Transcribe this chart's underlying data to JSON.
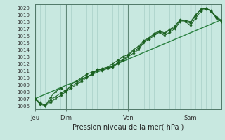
{
  "bg_color": "#c8e8e0",
  "grid_color": "#a0c8c0",
  "line_color": "#1a6020",
  "trend_color": "#2a8040",
  "xlabel_text": "Pression niveau de la mer( hPa )",
  "ylim": [
    1005.5,
    1020.5
  ],
  "yticks": [
    1006,
    1007,
    1008,
    1009,
    1010,
    1011,
    1012,
    1013,
    1014,
    1015,
    1016,
    1017,
    1018,
    1019,
    1020
  ],
  "day_labels": [
    "Jeu",
    "Dim",
    "Ven",
    "Sam"
  ],
  "day_positions": [
    0,
    0.167,
    0.5,
    0.833
  ],
  "xlim": [
    0,
    1.0
  ],
  "line1_x": [
    0.0,
    0.028,
    0.056,
    0.083,
    0.111,
    0.139,
    0.167,
    0.194,
    0.222,
    0.25,
    0.278,
    0.306,
    0.333,
    0.361,
    0.389,
    0.417,
    0.444,
    0.472,
    0.5,
    0.528,
    0.556,
    0.583,
    0.611,
    0.639,
    0.667,
    0.694,
    0.722,
    0.75,
    0.778,
    0.806,
    0.833,
    0.861,
    0.889,
    0.917,
    0.944,
    0.972,
    1.0
  ],
  "line1_y": [
    1007.0,
    1006.5,
    1006.0,
    1006.5,
    1007.0,
    1007.5,
    1008.0,
    1008.5,
    1009.0,
    1009.5,
    1010.0,
    1010.5,
    1011.0,
    1011.0,
    1011.3,
    1011.5,
    1012.0,
    1012.5,
    1013.0,
    1013.5,
    1014.0,
    1015.0,
    1015.5,
    1016.0,
    1016.5,
    1016.0,
    1016.5,
    1017.0,
    1018.0,
    1018.0,
    1017.5,
    1018.5,
    1019.5,
    1019.8,
    1019.5,
    1018.5,
    1018.0
  ],
  "line2_x": [
    0.0,
    0.028,
    0.056,
    0.083,
    0.111,
    0.139,
    0.167,
    0.194,
    0.222,
    0.25,
    0.278,
    0.306,
    0.333,
    0.361,
    0.389,
    0.417,
    0.444,
    0.472,
    0.5,
    0.528,
    0.556,
    0.583,
    0.611,
    0.639,
    0.667,
    0.694,
    0.722,
    0.75,
    0.778,
    0.806,
    0.833,
    0.861,
    0.889,
    0.917,
    0.944,
    0.972,
    1.0
  ],
  "line2_y": [
    1007.0,
    1006.3,
    1006.1,
    1006.8,
    1007.3,
    1007.8,
    1008.2,
    1008.7,
    1009.2,
    1009.7,
    1010.1,
    1010.5,
    1011.2,
    1011.1,
    1011.4,
    1011.6,
    1012.2,
    1012.6,
    1013.2,
    1013.8,
    1014.2,
    1015.2,
    1015.6,
    1016.2,
    1016.6,
    1016.3,
    1016.8,
    1017.2,
    1018.2,
    1018.1,
    1017.8,
    1018.9,
    1019.8,
    1019.9,
    1019.6,
    1018.7,
    1018.2
  ],
  "line3_x": [
    0.0,
    0.028,
    0.056,
    0.083,
    0.111,
    0.139,
    0.167,
    0.194,
    0.222,
    0.25,
    0.278,
    0.306,
    0.333,
    0.361,
    0.389,
    0.417,
    0.444,
    0.472,
    0.5,
    0.528,
    0.556,
    0.583,
    0.611,
    0.639,
    0.667,
    0.694,
    0.722,
    0.75,
    0.778,
    0.806,
    0.833,
    0.861,
    0.889,
    0.917,
    0.944,
    0.972,
    1.0
  ],
  "line3_y": [
    1007.0,
    1006.2,
    1006.0,
    1007.2,
    1008.0,
    1008.5,
    1008.0,
    1009.0,
    1009.5,
    1010.0,
    1010.5,
    1010.8,
    1011.0,
    1011.3,
    1011.5,
    1012.0,
    1012.5,
    1013.0,
    1013.3,
    1014.0,
    1014.5,
    1015.3,
    1015.7,
    1016.3,
    1016.7,
    1016.4,
    1016.9,
    1017.4,
    1018.3,
    1018.2,
    1018.0,
    1019.0,
    1019.7,
    1019.9,
    1019.5,
    1018.6,
    1018.1
  ],
  "trend_x": [
    0.0,
    1.0
  ],
  "trend_y": [
    1007.0,
    1018.3
  ]
}
